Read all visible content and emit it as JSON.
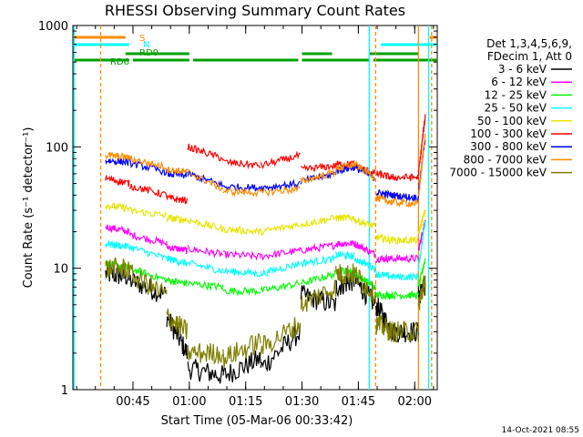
{
  "chart_data": {
    "type": "line",
    "title": "RHESSI Observing Summary Count Rates",
    "xlabel": "Start Time (05-Mar-06 00:33:42)",
    "ylabel": "Count Rate (s⁻¹ detector⁻¹)",
    "yscale": "log",
    "ylim": [
      1,
      1000
    ],
    "xlim_minutes": [
      -4,
      93
    ],
    "x_ticks": [
      {
        "m": 12,
        "label": "00:45"
      },
      {
        "m": 27,
        "label": "01:00"
      },
      {
        "m": 42,
        "label": "01:15"
      },
      {
        "m": 57,
        "label": "01:30"
      },
      {
        "m": 72,
        "label": "01:45"
      },
      {
        "m": 87,
        "label": "02:00"
      }
    ],
    "y_ticks": [
      {
        "v": 1,
        "label": "1"
      },
      {
        "v": 10,
        "label": "10"
      },
      {
        "v": 100,
        "label": "100"
      },
      {
        "v": 1000,
        "label": "1000"
      }
    ],
    "legend": {
      "placement": "right",
      "header": [
        "Det 1,3,4,5,6,9,",
        "FDecim 1, Att 0"
      ],
      "entries": [
        {
          "label": "3 - 6 keV",
          "color": "#000000"
        },
        {
          "label": "6 - 12 keV",
          "color": "#ff00ff"
        },
        {
          "label": "12 - 25 keV",
          "color": "#00ff00"
        },
        {
          "label": "25 - 50 keV",
          "color": "#00ffff"
        },
        {
          "label": "50 - 100 keV",
          "color": "#e6e600"
        },
        {
          "label": "100 - 300 keV",
          "color": "#ff0000"
        },
        {
          "label": "300 - 800 keV",
          "color": "#0000ff"
        },
        {
          "label": "800 - 7000 keV",
          "color": "#ff8c00"
        },
        {
          "label": "7000 - 15000 keV",
          "color": "#7f7f00"
        }
      ]
    },
    "flags": [
      {
        "name": "S",
        "color": "#ff8c00",
        "segments": [
          [
            -4,
            10
          ],
          [
            91,
            93
          ]
        ]
      },
      {
        "name": "N",
        "color": "#00ffff",
        "segments": [
          [
            -4,
            11
          ],
          [
            78,
            93
          ]
        ]
      },
      {
        "name": "RD0",
        "color": "#00a000",
        "segments": [
          [
            10,
            27
          ],
          [
            57,
            65
          ],
          [
            75,
            88
          ]
        ]
      },
      {
        "name": "RD6",
        "color": "#00a000",
        "segments": [
          [
            -4,
            11
          ],
          [
            12,
            27
          ],
          [
            28,
            56
          ],
          [
            57,
            75
          ],
          [
            76,
            93
          ]
        ]
      }
    ],
    "vlines": [
      {
        "m": -3.7,
        "color": "#00ffff",
        "dash": false
      },
      {
        "m": 3.4,
        "color": "#ff8c00",
        "dash": true
      },
      {
        "m": 74.9,
        "color": "#00ffff",
        "dash": false
      },
      {
        "m": 76.6,
        "color": "#ff8c00",
        "dash": true
      },
      {
        "m": 88.0,
        "color": "#ff8c00",
        "dash": false
      },
      {
        "m": 90.7,
        "color": "#00ffff",
        "dash": false
      },
      {
        "m": 91.5,
        "color": "#ff8c00",
        "dash": true
      }
    ],
    "segments_minutes": [
      [
        4.7,
        11.0
      ],
      [
        11.0,
        21.0
      ],
      [
        21.0,
        26.4
      ],
      [
        26.6,
        36.0
      ],
      [
        36.0,
        46.0
      ],
      [
        46.0,
        56.5
      ],
      [
        56.7,
        66.0
      ],
      [
        66.0,
        71.0
      ],
      [
        71.0,
        76.5
      ],
      [
        76.7,
        81.0
      ],
      [
        81.0,
        88.0
      ],
      [
        88.0,
        89.8
      ]
    ],
    "series": [
      {
        "name": "3 - 6 keV",
        "color": "#000000",
        "values": [
          [
            9,
            8.5
          ],
          [
            8,
            6
          ],
          [
            4,
            2
          ],
          [
            1.5,
            1.3
          ],
          [
            1.3,
            1.8
          ],
          [
            1.5,
            3
          ],
          [
            6,
            5
          ],
          [
            7,
            8
          ],
          [
            8,
            5
          ],
          [
            5,
            3
          ],
          [
            3,
            3
          ],
          [
            6,
            7
          ]
        ]
      },
      {
        "name": "6 - 12 keV",
        "color": "#ff00ff",
        "values": [
          [
            22,
            20
          ],
          [
            19,
            16
          ],
          [
            15,
            14
          ],
          [
            14.5,
            13
          ],
          [
            13,
            12.5
          ],
          [
            12.5,
            14
          ],
          [
            14,
            15.5
          ],
          [
            16,
            16
          ],
          [
            16,
            13
          ],
          [
            12,
            12
          ],
          [
            12,
            12
          ],
          [
            14,
            25
          ]
        ]
      },
      {
        "name": "12 - 25 keV",
        "color": "#00ff00",
        "values": [
          [
            11,
            10
          ],
          [
            10,
            8
          ],
          [
            8,
            7.5
          ],
          [
            7.5,
            7
          ],
          [
            6.5,
            6.5
          ],
          [
            6.5,
            7.5
          ],
          [
            7.5,
            9
          ],
          [
            9.5,
            9.5
          ],
          [
            9,
            7
          ],
          [
            6,
            6
          ],
          [
            6,
            6
          ],
          [
            7,
            12
          ]
        ]
      },
      {
        "name": "25 - 50 keV",
        "color": "#00ffff",
        "values": [
          [
            16,
            15
          ],
          [
            15,
            12
          ],
          [
            12,
            11
          ],
          [
            11,
            9.5
          ],
          [
            9.5,
            9
          ],
          [
            9,
            11
          ],
          [
            11,
            12
          ],
          [
            13,
            12.5
          ],
          [
            12,
            10
          ],
          [
            9,
            8.5
          ],
          [
            8.5,
            8.5
          ],
          [
            10,
            25
          ]
        ]
      },
      {
        "name": "50 - 100 keV",
        "color": "#e6e600",
        "values": [
          [
            33,
            31
          ],
          [
            30,
            27
          ],
          [
            26,
            25
          ],
          [
            25,
            21
          ],
          [
            21,
            20
          ],
          [
            20,
            23
          ],
          [
            23,
            26
          ],
          [
            26,
            26
          ],
          [
            25,
            22
          ],
          [
            18,
            17
          ],
          [
            17,
            17
          ],
          [
            19,
            30
          ]
        ]
      },
      {
        "name": "100 - 300 keV",
        "color": "#ff0000",
        "values": [
          [
            55,
            50
          ],
          [
            48,
            40
          ],
          [
            38,
            36
          ],
          [
            100,
            80
          ],
          [
            75,
            70
          ],
          [
            70,
            85
          ],
          [
            65,
            70
          ],
          [
            72,
            72
          ],
          [
            70,
            60
          ],
          [
            60,
            56
          ],
          [
            56,
            56
          ],
          [
            60,
            180
          ]
        ]
      },
      {
        "name": "300 - 800 keV",
        "color": "#0000ff",
        "values": [
          [
            77,
            75
          ],
          [
            74,
            62
          ],
          [
            60,
            58
          ],
          [
            60,
            48
          ],
          [
            47,
            46
          ],
          [
            46,
            50
          ],
          [
            52,
            60
          ],
          [
            64,
            68
          ],
          [
            68,
            55
          ],
          [
            42,
            40
          ],
          [
            40,
            38
          ],
          [
            42,
            120
          ]
        ]
      },
      {
        "name": "800 - 7000 keV",
        "color": "#ff8c00",
        "values": [
          [
            85,
            82
          ],
          [
            80,
            68
          ],
          [
            65,
            62
          ],
          [
            62,
            45
          ],
          [
            43,
            42
          ],
          [
            42,
            45
          ],
          [
            52,
            62
          ],
          [
            66,
            72
          ],
          [
            72,
            56
          ],
          [
            38,
            35
          ],
          [
            35,
            34
          ],
          [
            38,
            130
          ]
        ]
      },
      {
        "name": "7000 - 15000 keV",
        "color": "#7f7f00",
        "values": [
          [
            10,
            10
          ],
          [
            9,
            6
          ],
          [
            4,
            3
          ],
          [
            2,
            2
          ],
          [
            1.8,
            2.5
          ],
          [
            2.2,
            3.5
          ],
          [
            5,
            7
          ],
          [
            9,
            9
          ],
          [
            9,
            6
          ],
          [
            3.5,
            3
          ],
          [
            3,
            3
          ],
          [
            5,
            8
          ]
        ]
      }
    ]
  },
  "footer": {
    "timestamp": "14-Oct-2021 08:55"
  }
}
